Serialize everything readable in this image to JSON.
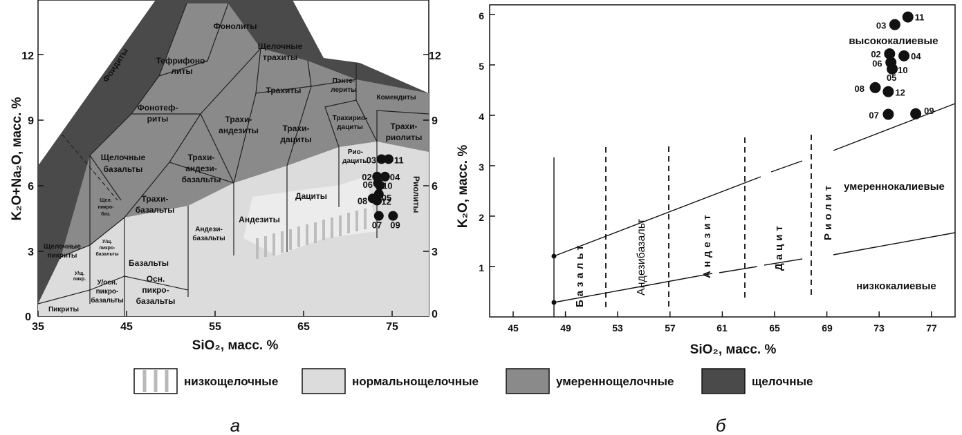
{
  "chart_data": [
    {
      "type": "scatter",
      "xlabel": "SiO₂, масс. %",
      "ylabel": "K₂O+Na₂O, масс. %",
      "xlim": [
        35,
        79
      ],
      "ylim": [
        0,
        14.5
      ],
      "x_ticks": [
        "35",
        "45",
        "55",
        "65",
        "75"
      ],
      "y_ticks": [
        "0",
        "3",
        "6",
        "9",
        "12"
      ],
      "field_labels": [
        "Фоидиты",
        "Фонолиты",
        "Тефрифоно-литы",
        "Щелочные трахиты",
        "Фонотеф-риты",
        "Щелочные базальты",
        "Трахи-андезиты",
        "Трахиты",
        "Пэнте-лериты",
        "Комендиты",
        "Трахи-андези-базальты",
        "Трахи-дациты",
        "Трахирио-дациты",
        "Трахи-риолиты",
        "Рио-дациты",
        "Риолиты",
        "Щел. пикро-баз.",
        "Трахи-базальты",
        "Андези-базальты",
        "Андезиты",
        "Дациты",
        "Щелочные пикриты",
        "У/щ. пикро-базальты",
        "У/щ. пикр.",
        "Базальты",
        "У/осн. пикро-базальты",
        "Осн. пикро-базальты",
        "Пикриты"
      ],
      "points": [
        {
          "label": "03",
          "x": 73.8,
          "y": 7.2
        },
        {
          "label": "11",
          "x": 74.6,
          "y": 7.2
        },
        {
          "label": "02",
          "x": 73.3,
          "y": 6.4
        },
        {
          "label": "04",
          "x": 74.2,
          "y": 6.4
        },
        {
          "label": "06",
          "x": 73.4,
          "y": 6.1
        },
        {
          "label": "10",
          "x": 73.6,
          "y": 6.0
        },
        {
          "label": "05",
          "x": 73.5,
          "y": 5.6
        },
        {
          "label": "08",
          "x": 72.8,
          "y": 5.4
        },
        {
          "label": "12",
          "x": 73.3,
          "y": 5.3
        },
        {
          "label": "07",
          "x": 73.5,
          "y": 4.6
        },
        {
          "label": "09",
          "x": 75.1,
          "y": 4.6
        }
      ]
    },
    {
      "type": "scatter",
      "xlabel": "SiO₂, масс. %",
      "ylabel": "K₂O, масс. %",
      "xlim": [
        41,
        81
      ],
      "ylim": [
        0,
        6.2
      ],
      "x_ticks": [
        "45",
        "49",
        "53",
        "57",
        "61",
        "65",
        "69",
        "73",
        "77"
      ],
      "y_ticks": [
        "1",
        "2",
        "3",
        "4",
        "5",
        "6"
      ],
      "zone_labels": [
        "Базальт",
        "Андезибазальт",
        "Андезит",
        "Дацит",
        "Риолит"
      ],
      "series_labels": [
        "высококалиевые",
        "умереннокалиевые",
        "низкокалиевые"
      ],
      "points": [
        {
          "label": "11",
          "x": 75.2,
          "y": 5.95
        },
        {
          "label": "03",
          "x": 74.2,
          "y": 5.8
        },
        {
          "label": "02",
          "x": 73.8,
          "y": 5.22
        },
        {
          "label": "04",
          "x": 74.9,
          "y": 5.18
        },
        {
          "label": "06",
          "x": 73.9,
          "y": 5.05
        },
        {
          "label": "10",
          "x": 74.0,
          "y": 4.92
        },
        {
          "label": "08",
          "x": 72.7,
          "y": 4.55
        },
        {
          "label": "12",
          "x": 73.7,
          "y": 4.47
        },
        {
          "label": "07",
          "x": 73.7,
          "y": 4.02
        },
        {
          "label": "09",
          "x": 75.8,
          "y": 4.03
        }
      ]
    }
  ],
  "chart_a_extra_labels": {
    "pt05": "05"
  },
  "legend": [
    {
      "label": "низкощелочные",
      "style": "hatch"
    },
    {
      "label": "нормальнощелочные",
      "color": "#dcdcdc"
    },
    {
      "label": "умереннощелочные",
      "color": "#8a8a8a"
    },
    {
      "label": "щелочные",
      "color": "#4a4a4a"
    }
  ],
  "captions": {
    "a": "а",
    "b": "б"
  },
  "colors": {
    "alkaline": "#4a4a4a",
    "moderate": "#8a8a8a",
    "normal": "#dcdcdc",
    "low": "#c9c9c9"
  }
}
